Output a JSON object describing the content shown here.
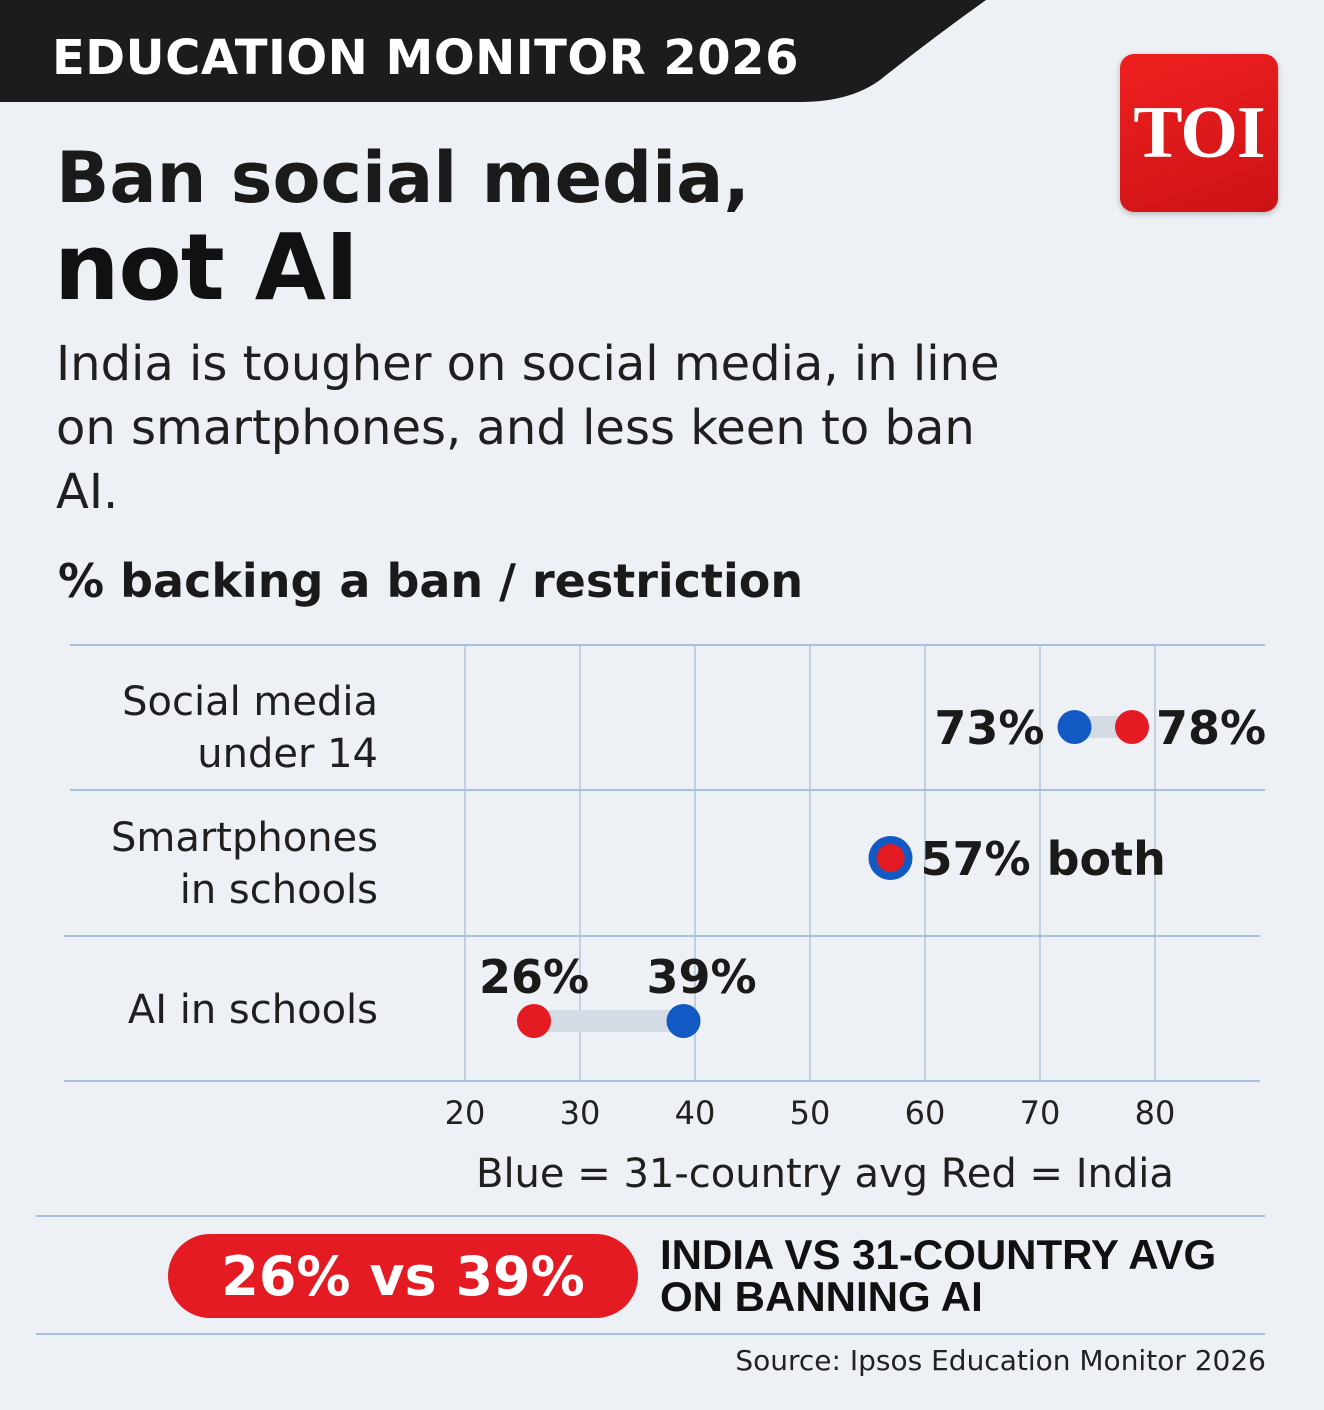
{
  "header": {
    "kicker": "EDUCATION MONITOR 2026",
    "logo_text": "TOI",
    "title_line1": "Ban social media,",
    "title_line2": "not AI",
    "subtitle": "India is tougher on social media, in line on smartphones, and less keen to ban AI."
  },
  "colors": {
    "india": "#e41b23",
    "avg": "#1259c3",
    "kicker_bg": "#1c1c1c",
    "connector": "#d4dbe5",
    "grid": "#c3cfdd"
  },
  "chart_data": {
    "type": "dumbbell",
    "title": "% backing a ban / restriction",
    "categories": [
      "Social media\nunder 14",
      "Smartphones\nin schools",
      "AI in schools"
    ],
    "series": [
      {
        "name": "31-country avg",
        "color": "#1259c3",
        "values": [
          73,
          57,
          39
        ]
      },
      {
        "name": "India",
        "color": "#e41b23",
        "values": [
          78,
          57,
          26
        ]
      }
    ],
    "data_labels": [
      {
        "category": 0,
        "avg": "73%",
        "india": "78%"
      },
      {
        "category": 1,
        "combined": "57% both"
      },
      {
        "category": 2,
        "avg": "39%",
        "india": "26%"
      }
    ],
    "xlim": [
      20,
      80
    ],
    "xticks": [
      20,
      30,
      40,
      50,
      60,
      70,
      80
    ],
    "grid": true,
    "legend": "Blue = 31-country avg Red = India"
  },
  "callout": {
    "pill": "26% vs 39%",
    "text": "INDIA VS 31-COUNTRY AVG ON BANNING AI"
  },
  "footer": {
    "source": "Source: Ipsos Education Monitor 2026"
  }
}
